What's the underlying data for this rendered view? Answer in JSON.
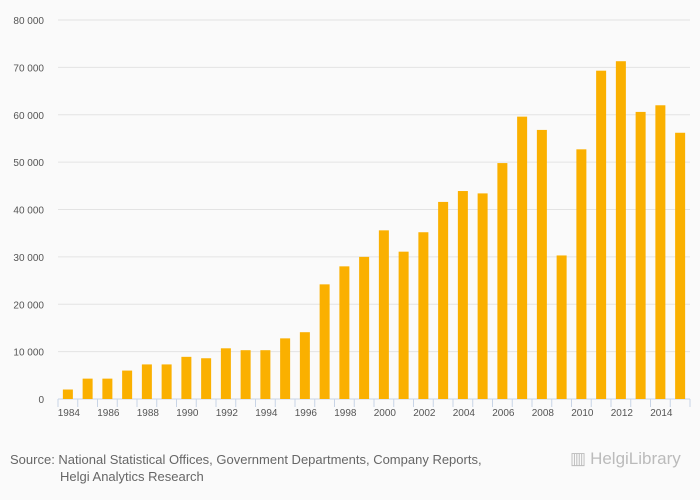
{
  "chart_data": {
    "type": "bar",
    "title": "",
    "xlabel": "",
    "ylabel": "",
    "ylim": [
      0,
      80000
    ],
    "yticks": [
      0,
      10000,
      20000,
      30000,
      40000,
      50000,
      60000,
      70000,
      80000
    ],
    "ytick_labels": [
      "0",
      "10 000",
      "20 000",
      "30 000",
      "40 000",
      "50 000",
      "60 000",
      "70 000",
      "80 000"
    ],
    "categories": [
      1984,
      1985,
      1986,
      1987,
      1988,
      1989,
      1990,
      1991,
      1992,
      1993,
      1994,
      1995,
      1996,
      1997,
      1998,
      1999,
      2000,
      2001,
      2002,
      2003,
      2004,
      2005,
      2006,
      2007,
      2008,
      2009,
      2010,
      2011,
      2012,
      2013,
      2014,
      2015
    ],
    "xtick_labels": [
      "1984",
      "1986",
      "1988",
      "1990",
      "1992",
      "1994",
      "1996",
      "1998",
      "2000",
      "2002",
      "2004",
      "2006",
      "2008",
      "2010",
      "2012",
      "2014"
    ],
    "values": [
      2000,
      4300,
      4300,
      6000,
      7300,
      7300,
      8900,
      8600,
      10700,
      10300,
      10300,
      12800,
      14100,
      24200,
      28000,
      30000,
      35600,
      31100,
      35200,
      41600,
      43900,
      43400,
      49800,
      59600,
      56800,
      30300,
      52700,
      69300,
      71300,
      60600,
      62000,
      56200
    ],
    "grid": true,
    "bar_color": "#fab000"
  },
  "footer": {
    "source_line1": "Source: National Statistical Offices, Government Departments, Company Reports,",
    "source_line2": "Helgi Analytics Research",
    "logo_text": "HelgiLibrary"
  }
}
